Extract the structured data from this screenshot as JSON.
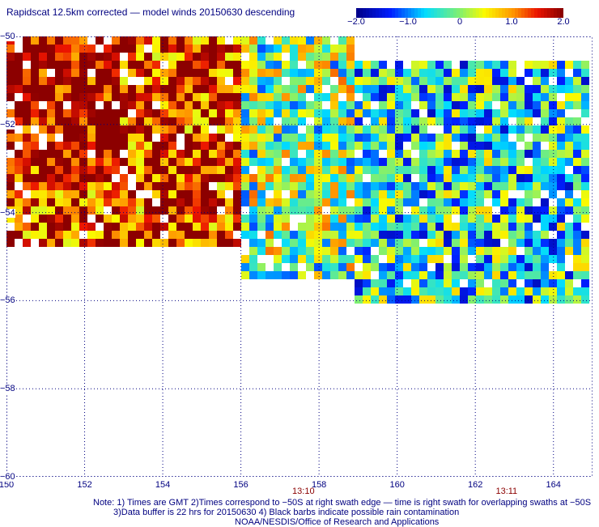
{
  "title": "Rapidscat 12.5km corrected — model winds 20150630 descending",
  "colorbar": {
    "ticks": [
      "−2.0",
      "−1.0",
      "0",
      "1.0",
      "2.0"
    ],
    "tick_values": [
      -2.0,
      -1.0,
      0,
      1.0,
      2.0
    ]
  },
  "axes": {
    "x_ticks": [
      "150",
      "152",
      "154",
      "156",
      "158",
      "160",
      "162",
      "164"
    ],
    "y_ticks": [
      "−50",
      "−52",
      "−54",
      "−56",
      "−58",
      "−60"
    ]
  },
  "times": [
    "13:10",
    "13:11"
  ],
  "time_positions": [
    157.6,
    162.8
  ],
  "notes": {
    "line1": "Note: 1) Times are GMT 2)Times correspond to −50S at right swath edge — time is right swath for overlapping swaths at −50S",
    "line2": "3)Data buffer is 22 hrs for 20150630 4) Black barbs indicate possible rain contamination",
    "line3": "NOAA/NESDIS/Office of Research and Applications"
  },
  "chart_data": {
    "type": "heatmap",
    "title": "Rapidscat 12.5km corrected — model winds 20150630 descending",
    "xlabel": "",
    "ylabel": "",
    "xlim": [
      150,
      165
    ],
    "ylim": [
      -60,
      -50
    ],
    "colorbar_range": [
      -2.0,
      2.0
    ],
    "grid": true,
    "swath_regions": [
      {
        "lon": [
          150,
          156
        ],
        "lat": [
          -54.8,
          -50
        ],
        "dominant_value": 1.5,
        "description_values": "high positive in northwest"
      },
      {
        "lon": [
          156,
          159
        ],
        "lat": [
          -55.5,
          -50
        ],
        "dominant_value": 0.0
      },
      {
        "lon": [
          159,
          165
        ],
        "lat": [
          -56,
          -50.5
        ],
        "dominant_value": -0.5
      }
    ]
  }
}
